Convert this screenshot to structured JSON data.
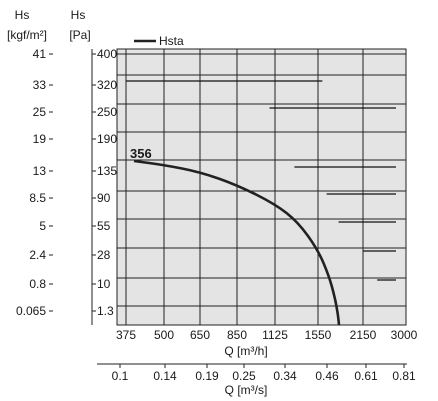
{
  "chart_data": {
    "type": "line",
    "axis_units": {
      "left_outer_title": "Hs",
      "left_outer_unit": "[kgf/m²]",
      "left_inner_title": "Hs",
      "left_inner_unit": "[Pa]"
    },
    "y_ticks_pa": [
      "400",
      "320",
      "250",
      "190",
      "135",
      "90",
      "55",
      "28",
      "10",
      "1.3"
    ],
    "y_ticks_kgf": [
      "41",
      "33",
      "25",
      "19",
      "13",
      "8.5",
      "5",
      "2.4",
      "0.8",
      "0.065"
    ],
    "x_ticks_m3h": [
      "375",
      "500",
      "650",
      "850",
      "1125",
      "1550",
      "2150",
      "3000"
    ],
    "x_label_m3h": "Q [m³/h]",
    "x_ticks_m3s": [
      "0.1",
      "0.14",
      "0.19",
      "0.25",
      "0.34",
      "0.46",
      "0.61",
      "0.81"
    ],
    "x_label_m3s": "Q [m³/s]",
    "legend": {
      "label": "Hsta",
      "placement": "top-left"
    },
    "annotation": "356",
    "grid": true,
    "series": [
      {
        "name": "Hsta",
        "x_scale_m3h": [
          375,
          500,
          650,
          850,
          1125,
          1350,
          1550,
          1700,
          1800,
          1850,
          1860
        ],
        "y_scale_pa": [
          145,
          140,
          128,
          110,
          85,
          62,
          40,
          20,
          6,
          1.3,
          0.6
        ]
      }
    ],
    "reference_lines_pa": [
      {
        "y": 320,
        "x_start_m3h": 375,
        "x_end_m3h": 1600
      },
      {
        "y": 250,
        "x_start_m3h": 1080,
        "x_end_m3h": 2900
      },
      {
        "y": 135,
        "x_start_m3h": 1300,
        "x_end_m3h": 2950
      },
      {
        "y": 90,
        "x_start_m3h": 1650,
        "x_end_m3h": 3000
      },
      {
        "y": 55,
        "x_start_m3h": 1800,
        "x_end_m3h": 3000
      },
      {
        "y": 28,
        "x_start_m3h": 2150,
        "x_end_m3h": 3000
      },
      {
        "y": 10,
        "x_start_m3h": 2400,
        "x_end_m3h": 3000
      }
    ]
  }
}
